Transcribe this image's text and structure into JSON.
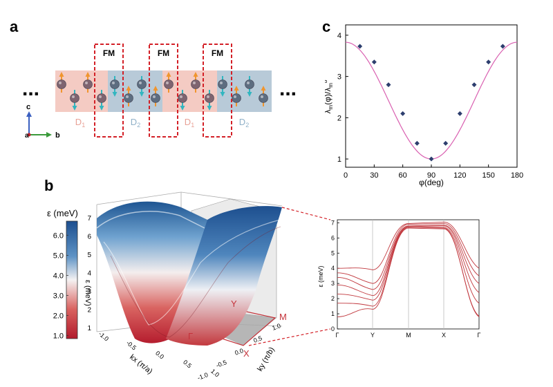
{
  "panel_labels": {
    "a": "a",
    "b": "b",
    "c": "c"
  },
  "panel_a": {
    "ellipsis_left": "...",
    "ellipsis_right": "...",
    "fm_label": "FM",
    "domains": [
      "D1",
      "D2",
      "D1",
      "D2"
    ],
    "domain_main": "D",
    "domain_subs": [
      "1",
      "2",
      "1",
      "2"
    ],
    "axes": {
      "c": "c",
      "a": "a",
      "b": "b"
    },
    "colors": {
      "d1": "#f4cbc3",
      "d2": "#b8cad8",
      "fm": "#d31f26",
      "spin_up": "#f0952e",
      "spin_down": "#32b6c0"
    }
  },
  "panel_b": {
    "colorbar": {
      "title": "ε (meV)",
      "ticks": [
        "6.0",
        "5.0",
        "4.0",
        "3.0",
        "2.0",
        "1.0"
      ],
      "range": [
        0.85,
        6.7
      ]
    },
    "surface_axes": {
      "z_label": "ε (meV)",
      "z_ticks": [
        "7",
        "6",
        "5",
        "4",
        "3",
        "2",
        "1"
      ],
      "kx_label": "kx (π/a)",
      "kx_ticks": [
        "-1.0",
        "-0.5",
        "0.0",
        "0.5",
        "1.0"
      ],
      "ky_label": "ky (π/b)",
      "ky_ticks": [
        "1.0",
        "0.5",
        "0.0",
        "-0.5",
        "-1.0"
      ],
      "points": [
        "Γ",
        "Y",
        "M",
        "X"
      ]
    },
    "band_plot": {
      "ylabel": "ε (meV)",
      "y_ticks": [
        "7",
        "6",
        "5",
        "4",
        "3",
        "2",
        "1",
        "0"
      ],
      "x_ticks": [
        "Γ",
        "Y",
        "M",
        "X",
        "Γ"
      ]
    }
  },
  "chart_data": {
    "type": "scatter",
    "title": "",
    "xlabel": "φ(deg)",
    "ylabel": "λm(φ)/λm^b",
    "ylabel_main": "λ",
    "ylabel_sub1": "m",
    "ylabel_mid": "(φ)/λ",
    "ylabel_sub2": "m",
    "ylabel_sup2": "b",
    "xlim": [
      0,
      180
    ],
    "ylim": [
      0.8,
      4.25
    ],
    "x_ticks": [
      0,
      30,
      60,
      90,
      120,
      150,
      180
    ],
    "y_ticks": [
      1,
      2,
      3,
      4
    ],
    "series": [
      {
        "name": "points",
        "x": [
          15,
          30,
          45,
          60,
          75,
          90,
          105,
          120,
          135,
          150,
          165
        ],
        "y": [
          3.73,
          3.35,
          2.8,
          2.1,
          1.38,
          1.0,
          1.38,
          2.1,
          2.8,
          3.35,
          3.73
        ]
      },
      {
        "name": "fit",
        "type": "line",
        "formula": "y = 1 + 2.83*cos^2(phi)"
      }
    ],
    "colors": {
      "line": "#d95fb0",
      "marker": "#2d3e6e"
    }
  }
}
